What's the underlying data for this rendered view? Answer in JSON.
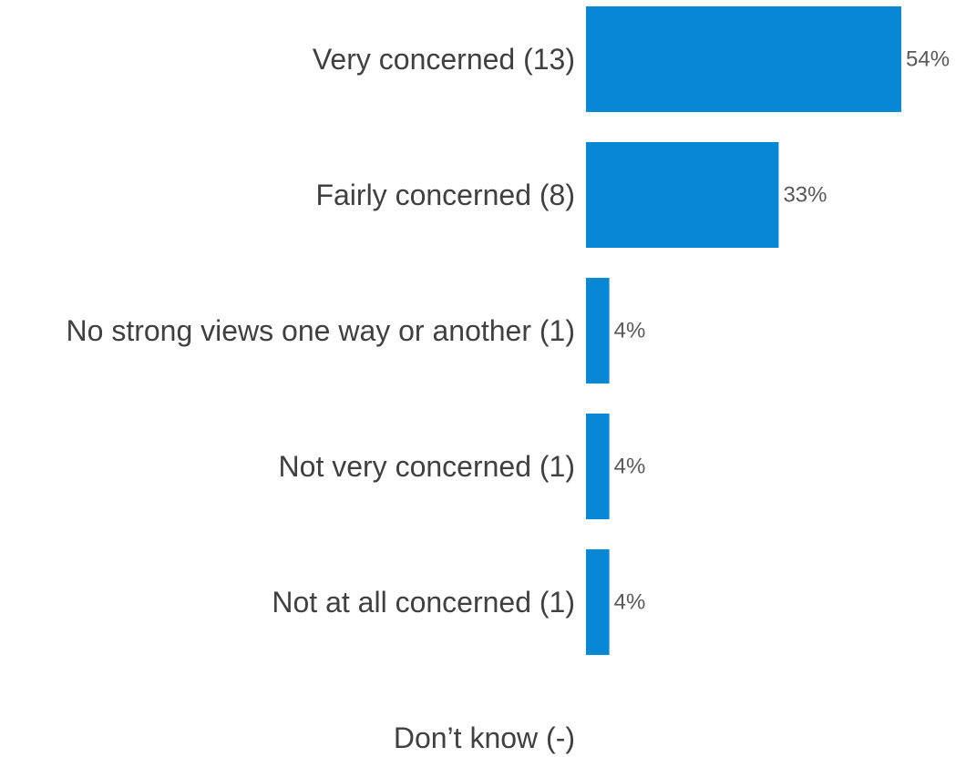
{
  "chart_data": {
    "type": "bar",
    "orientation": "horizontal",
    "categories": [
      "Very concerned (13)",
      "Fairly concerned (8)",
      "No strong views one way or another (1)",
      "Not very concerned (1)",
      "Not at all concerned (1)",
      "Don’t know (-)"
    ],
    "values": [
      54,
      33,
      4,
      4,
      4,
      null
    ],
    "value_labels": [
      "54%",
      "33%",
      "4%",
      "4%",
      "4%",
      ""
    ],
    "unit": "%",
    "xlim": [
      0,
      54
    ],
    "grid": false,
    "legend": "none",
    "bar_color": "#0887d4"
  }
}
